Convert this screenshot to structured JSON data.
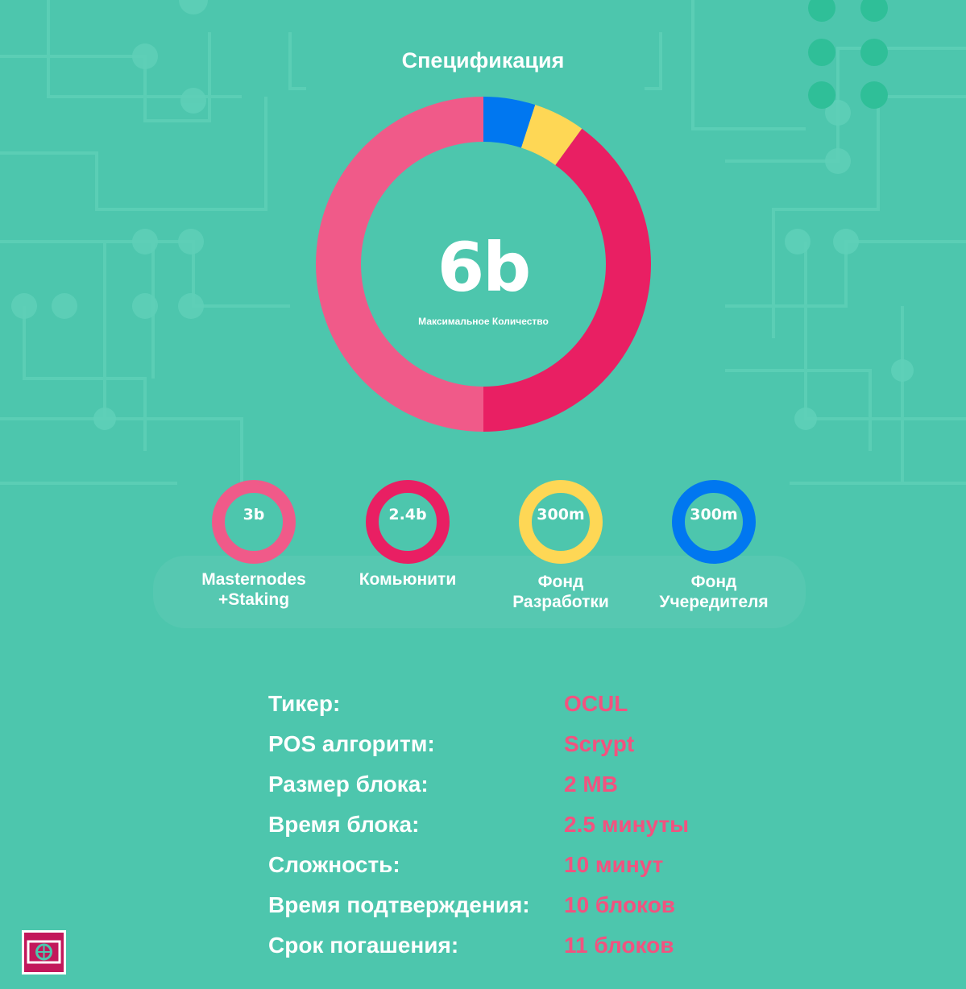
{
  "title": "Спецификация",
  "center": {
    "value": "6b",
    "label": "Максимальное Количество"
  },
  "colors": {
    "masternodes": "#f05a89",
    "community": "#e91f63",
    "dev_fund": "#fed755",
    "founder_fund": "#0077f0",
    "spec_value": "#f2527f",
    "background": "#4dc6ad"
  },
  "chart_data": {
    "type": "pie",
    "title": "Спецификация",
    "slices": [
      {
        "name": "Фонд Учередителя",
        "value": 300,
        "unit": "m",
        "color": "#0077f0"
      },
      {
        "name": "Фонд Разработки",
        "value": 300,
        "unit": "m",
        "color": "#fed755"
      },
      {
        "name": "Комьюнити",
        "value": 2400,
        "unit": "m",
        "color": "#e91f63"
      },
      {
        "name": "Masternodes +Staking",
        "value": 3000,
        "unit": "m",
        "color": "#f05a89"
      }
    ],
    "total_label": "6b"
  },
  "legend": [
    {
      "value": "3b",
      "label": "Masternodes\n+Staking",
      "color": "#f05a89"
    },
    {
      "value": "2.4b",
      "label": "Комьюнити",
      "color": "#e91f63"
    },
    {
      "value": "300m",
      "label": "Фонд\nРазработки",
      "color": "#fed755"
    },
    {
      "value": "300m",
      "label": "Фонд\nУчередителя",
      "color": "#0077f0"
    }
  ],
  "specs": [
    {
      "key": "Тикер:",
      "value": "OCUL"
    },
    {
      "key": "POS алгоритм:",
      "value": "Scrypt"
    },
    {
      "key": "Размер блока:",
      "value": "2 MB"
    },
    {
      "key": "Время блока:",
      "value": "2.5 минуты"
    },
    {
      "key": "Сложность:",
      "value": "10 минут"
    },
    {
      "key": "Время подтверждения:",
      "value": "10 блоков"
    },
    {
      "key": "Срок погашения:",
      "value": "11 блоков"
    }
  ]
}
